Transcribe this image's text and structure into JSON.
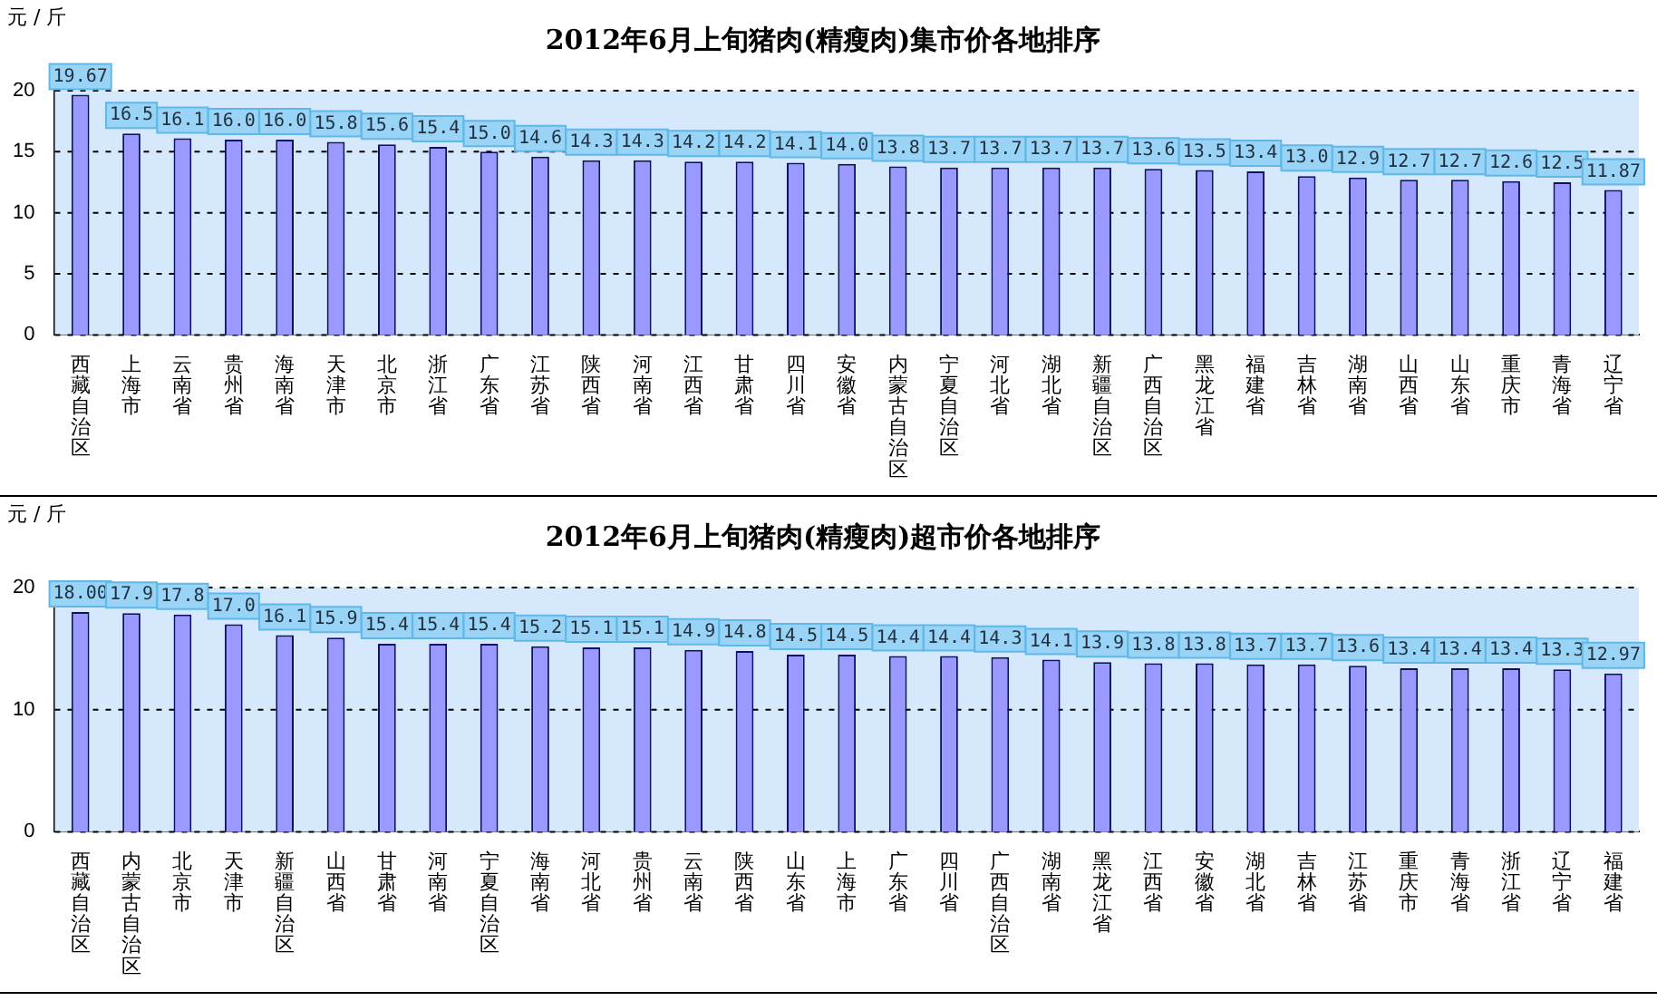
{
  "chart_data": [
    {
      "type": "bar",
      "title": "2012年6月上旬猪肉(精瘦肉)集市价各地排序",
      "ylabel": "元 / 斤",
      "categories": [
        "西藏自治区",
        "上海市",
        "云南省",
        "贵州省",
        "海南省",
        "天津市",
        "北京市",
        "浙江省",
        "广东省",
        "江苏省",
        "陕西省",
        "河南省",
        "江西省",
        "甘肃省",
        "四川省",
        "安徽省",
        "内蒙古自治区",
        "宁夏自治区",
        "河北省",
        "湖北省",
        "新疆自治区",
        "广西自治区",
        "黑龙江省",
        "福建省",
        "吉林省",
        "湖南省",
        "山西省",
        "山东省",
        "重庆市",
        "青海省",
        "辽宁省"
      ],
      "values": [
        19.67,
        16.5,
        16.1,
        16.0,
        16.0,
        15.8,
        15.6,
        15.4,
        15.0,
        14.6,
        14.3,
        14.3,
        14.2,
        14.2,
        14.1,
        14.0,
        13.8,
        13.7,
        13.7,
        13.7,
        13.7,
        13.6,
        13.5,
        13.4,
        13.0,
        12.9,
        12.7,
        12.7,
        12.6,
        12.5,
        11.87
      ],
      "value_labels": [
        "19.67",
        "16.5",
        "16.1",
        "16.0",
        "16.0",
        "15.8",
        "15.6",
        "15.4",
        "15.0",
        "14.6",
        "14.3",
        "14.3",
        "14.2",
        "14.2",
        "14.1",
        "14.0",
        "13.8",
        "13.7",
        "13.7",
        "13.7",
        "13.7",
        "13.6",
        "13.5",
        "13.4",
        "13.0",
        "12.9",
        "12.7",
        "12.7",
        "12.6",
        "12.5",
        "11.87"
      ],
      "color": "#9999ff",
      "ylim": [
        0,
        20
      ],
      "yticks": [
        0,
        5,
        10,
        15,
        20
      ],
      "grid": "y"
    },
    {
      "type": "bar",
      "title": "2012年6月上旬猪肉(精瘦肉)超市价各地排序",
      "ylabel": "元 / 斤",
      "categories": [
        "西藏自治区",
        "内蒙古自治区",
        "北京市",
        "天津市",
        "新疆自治区",
        "山西省",
        "甘肃省",
        "河南省",
        "宁夏自治区",
        "海南省",
        "河北省",
        "贵州省",
        "云南省",
        "陕西省",
        "山东省",
        "上海市",
        "广东省",
        "四川省",
        "广西自治区",
        "湖南省",
        "黑龙江省",
        "江西省",
        "安徽省",
        "湖北省",
        "吉林省",
        "江苏省",
        "重庆市",
        "青海省",
        "浙江省",
        "辽宁省",
        "福建省"
      ],
      "values": [
        18.0,
        17.9,
        17.8,
        17.0,
        16.1,
        15.9,
        15.4,
        15.4,
        15.4,
        15.2,
        15.1,
        15.1,
        14.9,
        14.8,
        14.5,
        14.5,
        14.4,
        14.4,
        14.3,
        14.1,
        13.9,
        13.8,
        13.8,
        13.7,
        13.7,
        13.6,
        13.4,
        13.4,
        13.4,
        13.3,
        12.97
      ],
      "value_labels": [
        "18.00",
        "17.9",
        "17.8",
        "17.0",
        "16.1",
        "15.9",
        "15.4",
        "15.4",
        "15.4",
        "15.2",
        "15.1",
        "15.1",
        "14.9",
        "14.8",
        "14.5",
        "14.5",
        "14.4",
        "14.4",
        "14.3",
        "14.1",
        "13.9",
        "13.8",
        "13.8",
        "13.7",
        "13.7",
        "13.6",
        "13.4",
        "13.4",
        "13.4",
        "13.3",
        "12.97"
      ],
      "color": "#9999ff",
      "ylim": [
        0,
        20
      ],
      "yticks": [
        0,
        10,
        20
      ],
      "grid": "y"
    }
  ]
}
